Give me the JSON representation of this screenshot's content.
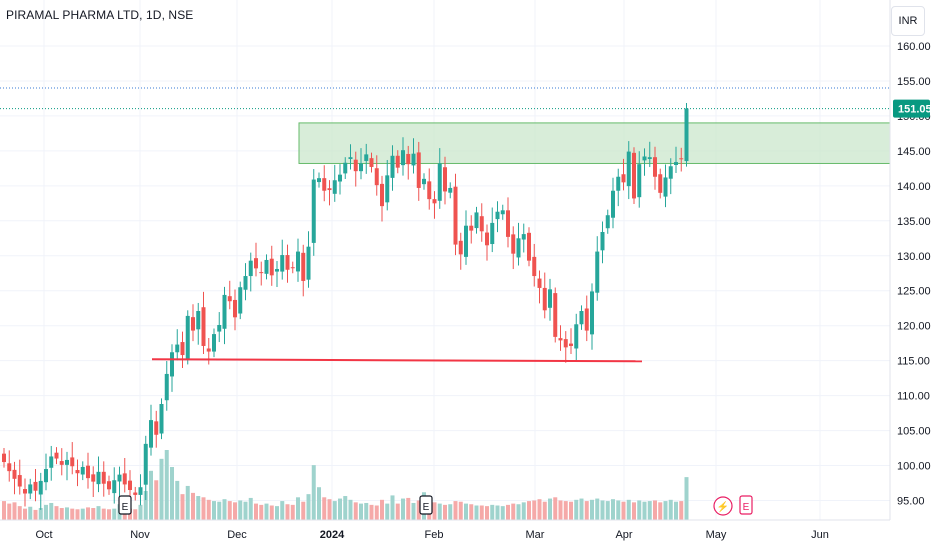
{
  "header": {
    "title": "PIRAMAL PHARMA LTD, 1D, NSE",
    "currency_button": "INR"
  },
  "price_badge": "151.05",
  "chart_data": {
    "type": "candlestick",
    "symbol": "PIRAMAL PHARMA LTD",
    "interval": "1D",
    "exchange": "NSE",
    "ylim": [
      92,
      165
    ],
    "y_ticks": [
      95,
      100,
      105,
      110,
      115,
      120,
      125,
      130,
      135,
      140,
      145,
      150,
      155,
      160
    ],
    "y_tick_labels": [
      "95.00",
      "100.00",
      "105.00",
      "110.00",
      "115.00",
      "120.00",
      "125.00",
      "130.00",
      "135.00",
      "140.00",
      "145.00",
      "150.00",
      "155.00",
      "160.00"
    ],
    "x_tick_labels": [
      "Oct",
      "Nov",
      "Dec",
      "2024",
      "Feb",
      "Mar",
      "Apr",
      "May",
      "Jun"
    ],
    "grid": true,
    "colors": {
      "up": "#26a69a",
      "down": "#ef5350",
      "vol_up": "#9fd3cd",
      "vol_down": "#f5a9a8",
      "zone_fill": "#c8e6c9",
      "zone_border": "#66bb6a",
      "support_line": "#f23645",
      "last_price": "#089981",
      "grid": "#f0f3fa",
      "axis_text": "#131722"
    },
    "last_price": 151.05,
    "high_line": 154,
    "resistance_zone": {
      "low": 143.2,
      "high": 149
    },
    "support_line": {
      "value": 115.2,
      "from": "Nov",
      "to": "Mar"
    },
    "events": [
      {
        "type": "earnings",
        "label": "E",
        "near": "Nov"
      },
      {
        "type": "earnings",
        "label": "E",
        "near": "Feb"
      },
      {
        "type": "dividend",
        "label": "⚡",
        "near": "May"
      },
      {
        "type": "earnings",
        "label": "E",
        "near": "May"
      }
    ],
    "closes": [
      100.5,
      99.2,
      98.1,
      97.0,
      96.0,
      97.3,
      96.4,
      97.8,
      99.5,
      101.3,
      101.0,
      100.1,
      100.8,
      99.9,
      98.9,
      99.8,
      98.2,
      97.7,
      99.1,
      97.4,
      96.6,
      97.9,
      98.7,
      97.3,
      96.5,
      95.8,
      96.9,
      103.1,
      106.5,
      104.4,
      108.8,
      113.1,
      116.2,
      117.3,
      115.8,
      121.4,
      119.3,
      122.1,
      117.1,
      116.3,
      118.8,
      120.1,
      124.4,
      123.5,
      121.2,
      125.5,
      127.1,
      129.3,
      128.2,
      127.6,
      129.4,
      127.2,
      128.1,
      130.1,
      128.0,
      128.3,
      130.6,
      126.4,
      131.3,
      140.9,
      141.1,
      139.3,
      139.4,
      140.8,
      141.6,
      143.3,
      144.1,
      142.1,
      143.2,
      144.5,
      142.7,
      140.1,
      137.1,
      141.5,
      144.3,
      142.6,
      145.1,
      143.1,
      144.6,
      139.7,
      141.0,
      138.1,
      137.5,
      143.2,
      139.2,
      139.7,
      131.6,
      130.2,
      134.3,
      133.6,
      136.2,
      133.5,
      131.5,
      134.7,
      136.3,
      136.5,
      132.7,
      130.3,
      132.5,
      133.1,
      129.3,
      127.1,
      125.4,
      122.2,
      125.2,
      118.4,
      117.9,
      116.9,
      117.1,
      120.2,
      122.1,
      119.3,
      124.9,
      130.6,
      133.4,
      135.8,
      139.3,
      141.3,
      140.5,
      144.9,
      138.2,
      143.1,
      144.2,
      144.1,
      141.3,
      139.0,
      141.2,
      142.8,
      143.4,
      143.9,
      151.05
    ],
    "volumes": [
      3.0,
      2.6,
      2.8,
      2.2,
      1.8,
      2.1,
      1.6,
      1.9,
      2.4,
      2.7,
      2.2,
      1.9,
      2.0,
      1.8,
      1.7,
      1.8,
      2.0,
      1.9,
      2.2,
      1.8,
      1.7,
      1.8,
      2.5,
      1.9,
      1.8,
      1.7,
      2.4,
      4.6,
      7.8,
      6.3,
      9.7,
      11.1,
      8.4,
      6.2,
      4.1,
      5.4,
      4.3,
      3.8,
      3.6,
      3.2,
      3.0,
      2.9,
      3.3,
      3.0,
      2.8,
      3.1,
      2.9,
      3.5,
      2.6,
      2.4,
      2.6,
      2.3,
      2.2,
      3.0,
      2.5,
      2.4,
      3.6,
      2.9,
      4.1,
      8.7,
      5.2,
      3.6,
      3.3,
      3.0,
      3.4,
      3.8,
      3.2,
      2.8,
      2.6,
      2.7,
      2.4,
      2.3,
      3.2,
      2.6,
      3.9,
      2.6,
      3.4,
      3.5,
      2.7,
      3.1,
      4.4,
      3.0,
      2.8,
      2.6,
      2.4,
      2.5,
      3.0,
      2.9,
      2.6,
      2.5,
      2.3,
      2.3,
      2.2,
      2.4,
      2.3,
      2.2,
      2.4,
      2.6,
      2.5,
      2.8,
      3.0,
      3.1,
      3.3,
      2.9,
      3.4,
      3.6,
      3.1,
      3.0,
      2.9,
      3.2,
      3.4,
      3.0,
      3.2,
      3.4,
      3.1,
      3.0,
      3.3,
      3.1,
      2.9,
      3.2,
      2.8,
      3.1,
      2.9,
      3.0,
      3.1,
      2.8,
      3.0,
      3.2,
      2.9,
      3.0,
      6.8
    ]
  }
}
